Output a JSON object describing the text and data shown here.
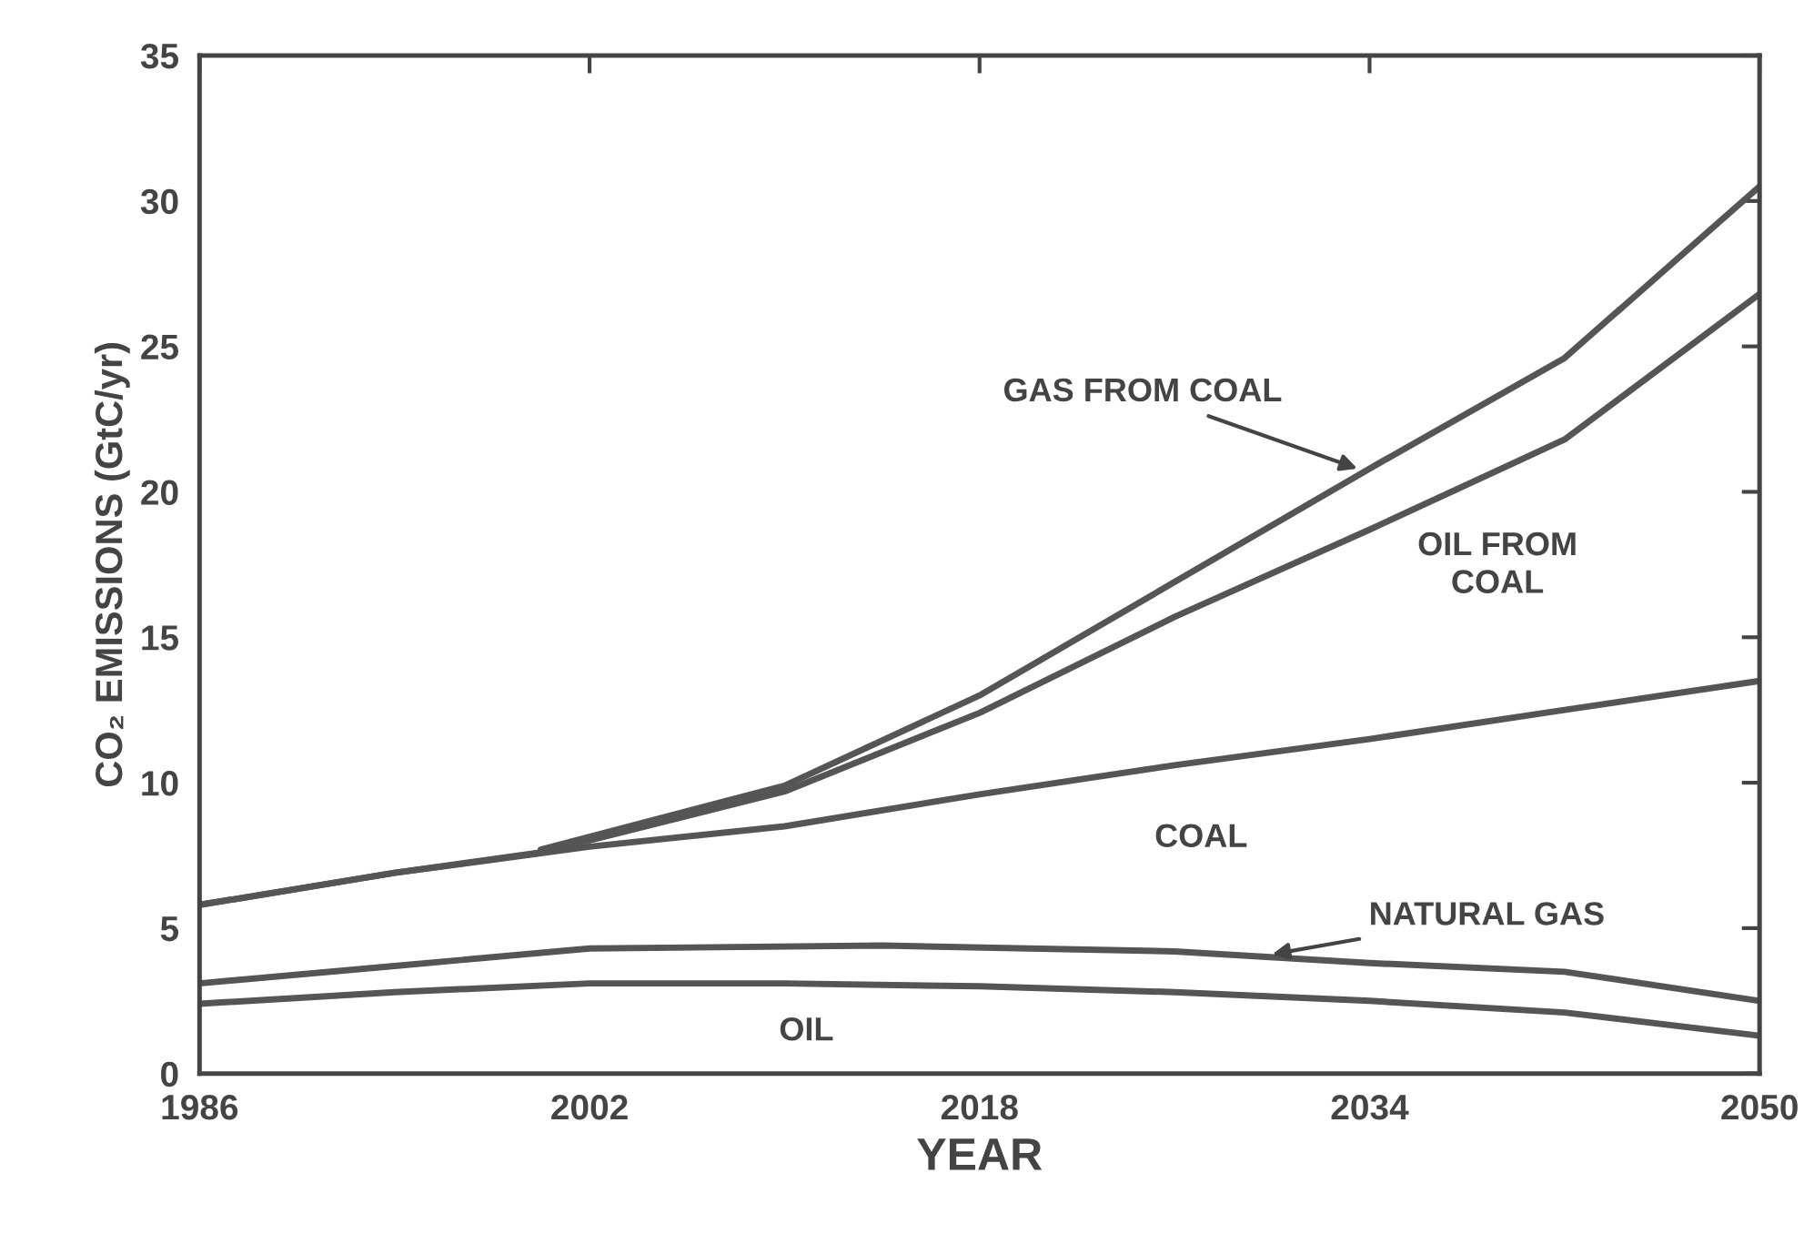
{
  "chart_data": {
    "type": "line",
    "xlabel": "YEAR",
    "ylabel": "CO₂ EMISSIONS (GtC/yr)",
    "xlim": [
      1986,
      2050
    ],
    "ylim": [
      0,
      35
    ],
    "xticks": [
      1986,
      2002,
      2018,
      2034,
      2050
    ],
    "yticks": [
      0,
      5,
      10,
      15,
      20,
      25,
      30,
      35
    ],
    "grid": false,
    "legend": false,
    "marker": "none",
    "line_style": "solid",
    "series": [
      {
        "color": "#555555",
        "x": [
          1986,
          1994,
          2002,
          2010,
          2018,
          2026,
          2034,
          2042,
          2050
        ],
        "values": [
          2.4,
          2.8,
          3.1,
          3.1,
          3.0,
          2.8,
          2.5,
          2.1,
          1.3
        ]
      },
      {
        "color": "#555555",
        "x": [
          1986,
          1994,
          2002,
          2014,
          2026,
          2034,
          2042,
          2050
        ],
        "values": [
          3.1,
          3.7,
          4.3,
          4.4,
          4.2,
          3.8,
          3.5,
          2.5
        ]
      },
      {
        "color": "#555555",
        "x": [
          1986,
          1994,
          2002,
          2010,
          2018,
          2026,
          2034,
          2042,
          2050
        ],
        "values": [
          5.8,
          6.9,
          7.8,
          8.5,
          9.6,
          10.6,
          11.5,
          12.5,
          13.5
        ]
      },
      {
        "color": "#555555",
        "x": [
          1986,
          1994,
          2000,
          2010,
          2018,
          2026,
          2034,
          2042,
          2050
        ],
        "values": [
          5.8,
          6.9,
          7.6,
          9.7,
          12.4,
          15.7,
          18.7,
          21.8,
          26.8
        ]
      },
      {
        "color": "#555555",
        "x": [
          2000,
          2010,
          2018,
          2026,
          2034,
          2042,
          2050
        ],
        "values": [
          7.7,
          9.9,
          13.0,
          16.9,
          20.8,
          24.6,
          30.5
        ]
      }
    ],
    "annotations": [
      {
        "text": "GAS FROM COAL",
        "x": 2033.5,
        "y": 20.8
      },
      "OIL FROM\nCOAL",
      "COAL",
      {
        "text": "NATURAL GAS",
        "x": 2030,
        "y": 4.1
      },
      "OIL"
    ]
  }
}
